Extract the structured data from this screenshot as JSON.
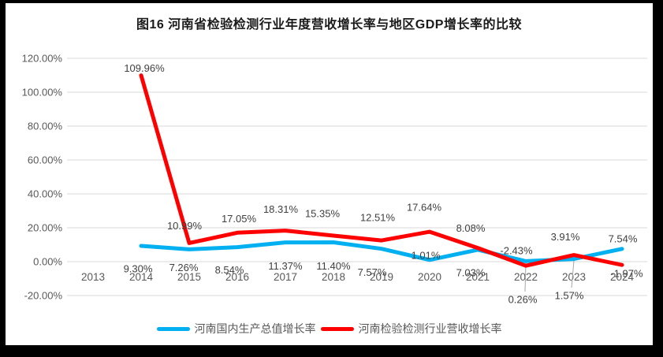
{
  "title": "图16  河南省检验检测行业年度营收增长率与地区GDP增长率的比较",
  "legend": [
    {
      "label": "河南国内生产总值增长率",
      "color": "#00B0F0"
    },
    {
      "label": "河南检验检测行业营收增长率",
      "color": "#FF0000"
    }
  ],
  "colors": {
    "gridline": "#D9D9D9",
    "axis_text": "#595959",
    "data_label_text": "#404040",
    "leader_line": "#A6A6A6",
    "frame": "#000000",
    "background": "#FFFFFF"
  },
  "chart_data": {
    "type": "line",
    "title": "图16  河南省检验检测行业年度营收增长率与地区GDP增长率的比较",
    "categories": [
      "2013",
      "2014",
      "2015",
      "2016",
      "2017",
      "2018",
      "2019",
      "2020",
      "2021",
      "2022",
      "2023",
      "2024"
    ],
    "series": [
      {
        "name": "河南国内生产总值增长率",
        "color": "#00B0F0",
        "values": [
          null,
          9.3,
          7.26,
          8.54,
          11.37,
          11.4,
          7.57,
          1.01,
          7.03,
          0.26,
          1.57,
          7.54
        ],
        "labels": [
          null,
          "9.30%",
          "7.26%",
          "8.54%",
          "11.37%",
          "11.40%",
          "7.57%",
          "1.01%",
          "7.03%",
          "0.26%",
          "1.57%",
          "7.54%"
        ]
      },
      {
        "name": "河南检验检测行业营收增长率",
        "color": "#FF0000",
        "values": [
          null,
          109.96,
          10.99,
          17.05,
          18.31,
          15.35,
          12.51,
          17.64,
          8.08,
          -2.43,
          3.91,
          -1.97
        ],
        "labels": [
          null,
          "109.96%",
          "10.99%",
          "17.05%",
          "18.31%",
          "15.35%",
          "12.51%",
          "17.64%",
          "8.08%",
          "-2.43%",
          "3.91%",
          "-1.97%"
        ]
      }
    ],
    "yticks": [
      120,
      100,
      80,
      60,
      40,
      20,
      0,
      -20
    ],
    "ytick_labels": [
      "120.00%",
      "100.00%",
      "80.00%",
      "60.00%",
      "40.00%",
      "20.00%",
      "0.00%",
      "-20.00%"
    ],
    "ylim": [
      -20,
      120
    ],
    "grid": true,
    "legend_position": "bottom",
    "x_axis_labels": "next_to_zero_line",
    "layout_hints": {
      "label_offsets": {
        "series0": [
          null,
          [
            -4,
            29
          ],
          [
            -7,
            23
          ],
          [
            -10,
            29
          ],
          [
            0,
            30
          ],
          [
            0,
            30
          ],
          [
            -12,
            30
          ],
          [
            -5,
            -6
          ],
          [
            -9,
            29
          ],
          null,
          null,
          [
            1,
            -13
          ]
        ],
        "series1": [
          null,
          [
            4,
            -9
          ],
          [
            -6,
            -22
          ],
          [
            2,
            -18
          ],
          [
            -6,
            -27
          ],
          [
            -14,
            -28
          ],
          [
            -5,
            -29
          ],
          [
            -7,
            -31
          ],
          [
            -9,
            -25
          ],
          [
            -12,
            -19
          ],
          [
            -11,
            -23
          ],
          [
            6,
            11
          ]
        ]
      },
      "callouts": [
        {
          "series": 0,
          "index": 9,
          "label_center": [
            656,
            376
          ]
        },
        {
          "series": 0,
          "index": 10,
          "label_center": [
            715,
            371
          ]
        }
      ]
    }
  }
}
